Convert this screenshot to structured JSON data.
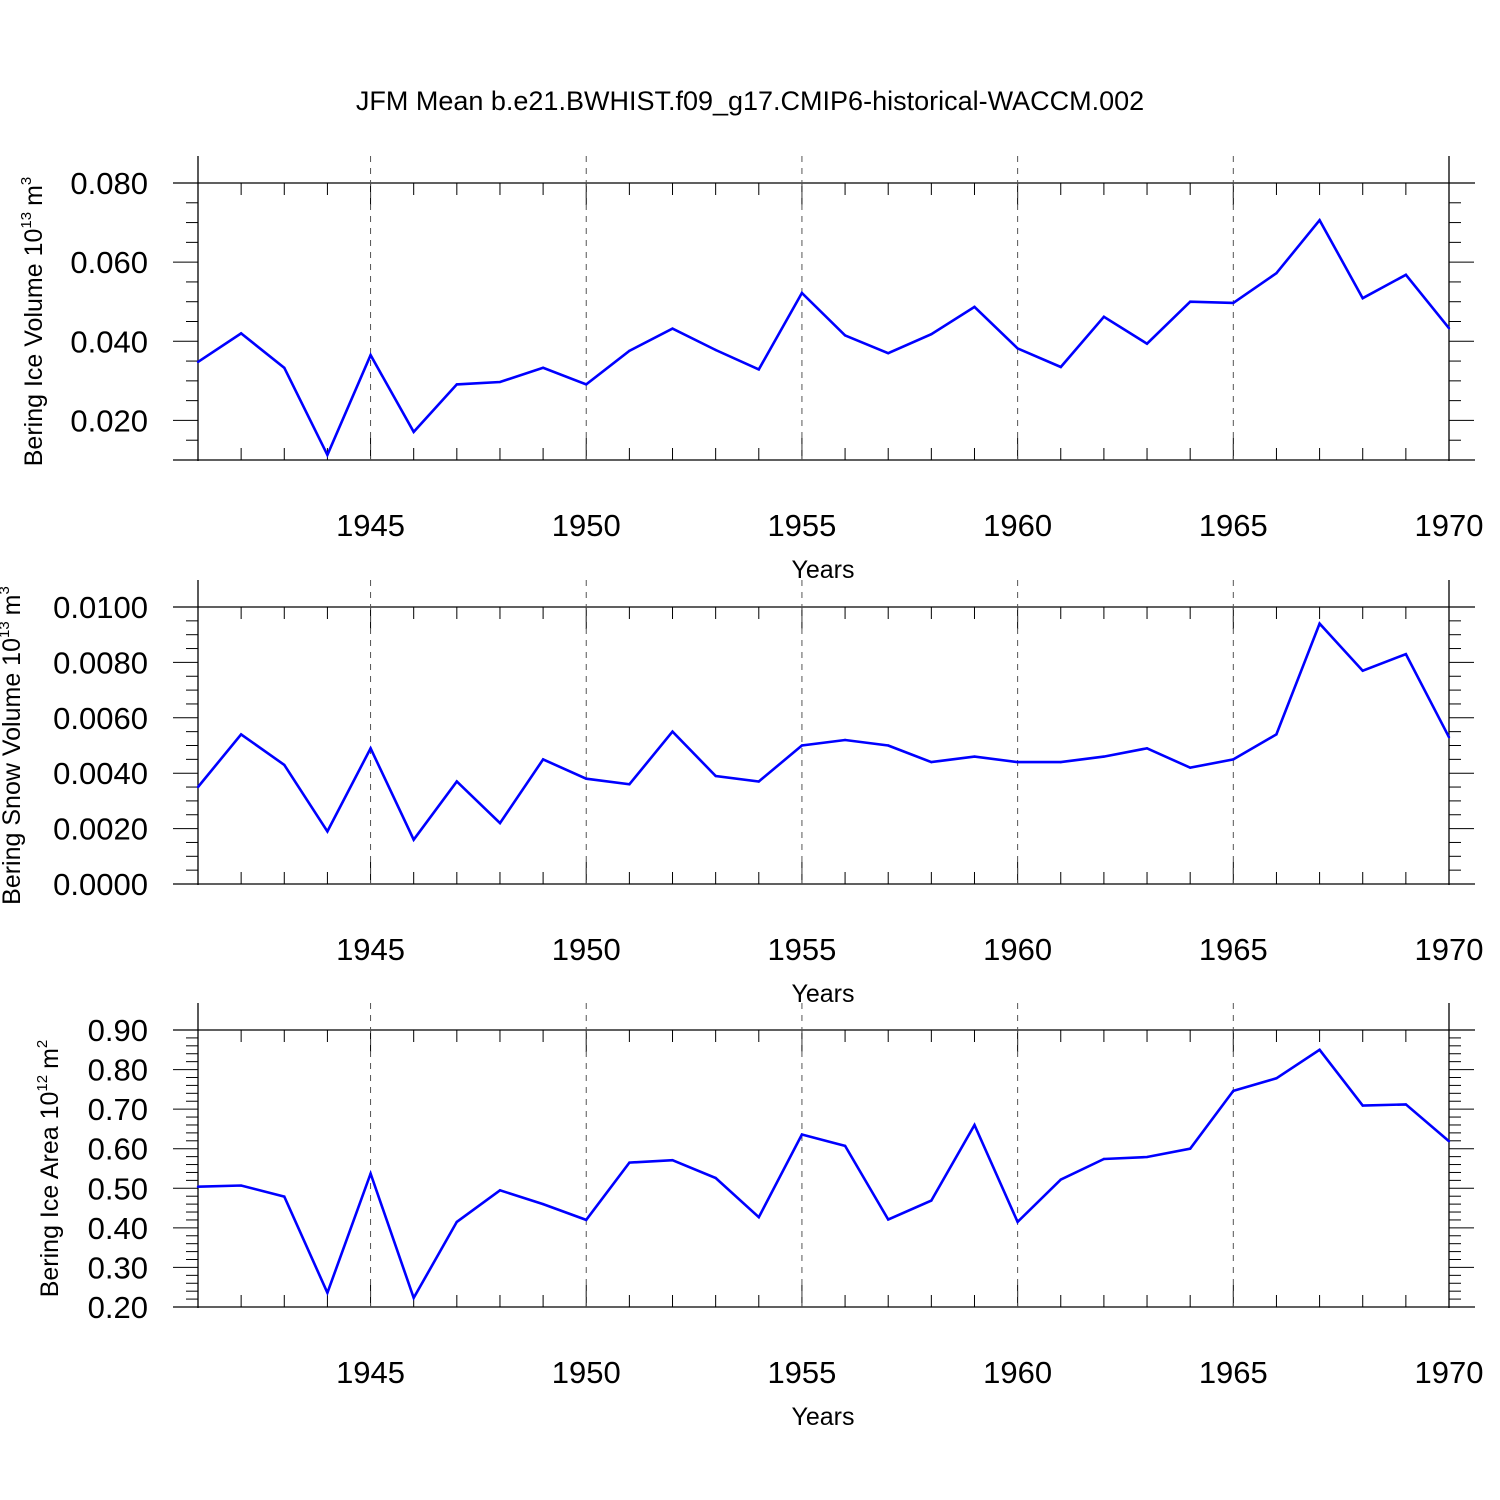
{
  "title": "JFM Mean b.e21.BWHIST.f09_g17.CMIP6-historical-WACCM.002",
  "colors": {
    "series": "#0000ff",
    "axis": "#000000",
    "grid": "#555555"
  },
  "chart_data": [
    {
      "type": "line",
      "ylabel": "Bering Ice Volume 10",
      "ylabel_exponent": "13",
      "ylabel_unit": "m",
      "ylabel_unit_exponent": "3",
      "xlabel": "Years",
      "xlim": [
        1941,
        1970
      ],
      "ylim": [
        0.01,
        0.08
      ],
      "xticks": [
        "1945",
        "1950",
        "1955",
        "1960",
        "1965",
        "1970"
      ],
      "yticks": [
        "0.020",
        "0.040",
        "0.060",
        "0.080"
      ],
      "grid": "vertical dashed at labeled x ticks",
      "x": [
        1941,
        1942,
        1943,
        1944,
        1945,
        1946,
        1947,
        1948,
        1949,
        1950,
        1951,
        1952,
        1953,
        1954,
        1955,
        1956,
        1957,
        1958,
        1959,
        1960,
        1961,
        1962,
        1963,
        1964,
        1965,
        1966,
        1967,
        1968,
        1969,
        1970
      ],
      "values": [
        0.0348,
        0.042,
        0.0333,
        0.0113,
        0.0365,
        0.0171,
        0.0291,
        0.0297,
        0.0333,
        0.0291,
        0.0376,
        0.0432,
        0.0378,
        0.0329,
        0.0522,
        0.0415,
        0.037,
        0.0418,
        0.0487,
        0.0382,
        0.0335,
        0.0462,
        0.0394,
        0.05,
        0.0497,
        0.0572,
        0.0706,
        0.0509,
        0.0568,
        0.0433
      ]
    },
    {
      "type": "line",
      "ylabel": "Bering Snow Volume 10",
      "ylabel_exponent": "13",
      "ylabel_unit": "m",
      "ylabel_unit_exponent": "3",
      "xlabel": "Years",
      "xlim": [
        1941,
        1970
      ],
      "ylim": [
        0.0,
        0.01
      ],
      "xticks": [
        "1945",
        "1950",
        "1955",
        "1960",
        "1965",
        "1970"
      ],
      "yticks": [
        "0.0000",
        "0.0020",
        "0.0040",
        "0.0060",
        "0.0080",
        "0.0100"
      ],
      "grid": "vertical dashed at labeled x ticks",
      "x": [
        1941,
        1942,
        1943,
        1944,
        1945,
        1946,
        1947,
        1948,
        1949,
        1950,
        1951,
        1952,
        1953,
        1954,
        1955,
        1956,
        1957,
        1958,
        1959,
        1960,
        1961,
        1962,
        1963,
        1964,
        1965,
        1966,
        1967,
        1968,
        1969,
        1970
      ],
      "values": [
        0.0035,
        0.0054,
        0.0043,
        0.0019,
        0.0049,
        0.0016,
        0.0037,
        0.0022,
        0.0045,
        0.0038,
        0.0036,
        0.0055,
        0.0039,
        0.0037,
        0.005,
        0.0052,
        0.005,
        0.0044,
        0.0046,
        0.0044,
        0.0044,
        0.0046,
        0.0049,
        0.0042,
        0.0045,
        0.0054,
        0.0094,
        0.0077,
        0.0083,
        0.0053
      ]
    },
    {
      "type": "line",
      "ylabel": "Bering Ice Area 10",
      "ylabel_exponent": "12",
      "ylabel_unit": "m",
      "ylabel_unit_exponent": "2",
      "xlabel": "Years",
      "xlim": [
        1941,
        1970
      ],
      "ylim": [
        0.2,
        0.9
      ],
      "xticks": [
        "1945",
        "1950",
        "1955",
        "1960",
        "1965",
        "1970"
      ],
      "yticks": [
        "0.20",
        "0.30",
        "0.40",
        "0.50",
        "0.60",
        "0.70",
        "0.80",
        "0.90"
      ],
      "grid": "vertical dashed at labeled x ticks",
      "x": [
        1941,
        1942,
        1943,
        1944,
        1945,
        1946,
        1947,
        1948,
        1949,
        1950,
        1951,
        1952,
        1953,
        1954,
        1955,
        1956,
        1957,
        1958,
        1959,
        1960,
        1961,
        1962,
        1963,
        1964,
        1965,
        1966,
        1967,
        1968,
        1969,
        1970
      ],
      "values": [
        0.504,
        0.507,
        0.479,
        0.236,
        0.537,
        0.223,
        0.415,
        0.495,
        0.46,
        0.42,
        0.565,
        0.571,
        0.526,
        0.427,
        0.636,
        0.607,
        0.421,
        0.469,
        0.66,
        0.415,
        0.522,
        0.574,
        0.579,
        0.6,
        0.746,
        0.778,
        0.85,
        0.709,
        0.712,
        0.619
      ]
    }
  ]
}
